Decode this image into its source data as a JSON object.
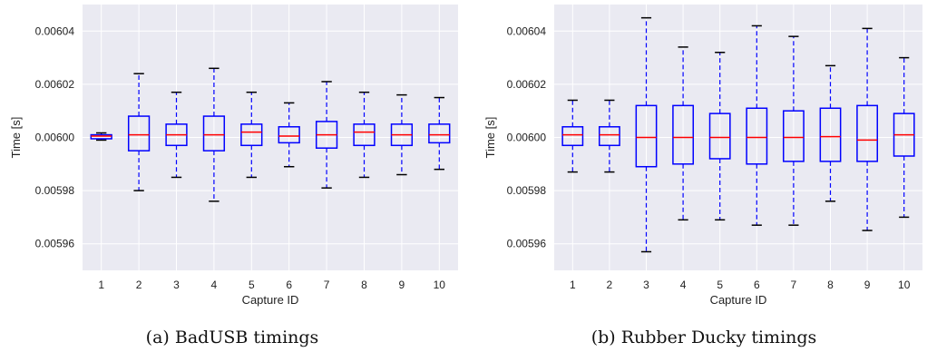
{
  "chart_data": [
    {
      "type": "box",
      "caption": "(a) BadUSB timings",
      "xlabel": "Capture ID",
      "ylabel": "Time [s]",
      "ylim": [
        0.00595,
        0.00605
      ],
      "yticks": [
        "0.00596",
        "0.00598",
        "0.00600",
        "0.00602",
        "0.00604"
      ],
      "grid": true,
      "categories": [
        "1",
        "2",
        "3",
        "4",
        "5",
        "6",
        "7",
        "8",
        "9",
        "10"
      ],
      "boxes": [
        {
          "whisker_low": 0.005999,
          "q1": 0.0059995,
          "median": 0.0060005,
          "q3": 0.006001,
          "whisker_high": 0.0060017
        },
        {
          "whisker_low": 0.00598,
          "q1": 0.005995,
          "median": 0.006001,
          "q3": 0.006008,
          "whisker_high": 0.006024
        },
        {
          "whisker_low": 0.005985,
          "q1": 0.005997,
          "median": 0.006001,
          "q3": 0.006005,
          "whisker_high": 0.006017
        },
        {
          "whisker_low": 0.005976,
          "q1": 0.005995,
          "median": 0.006001,
          "q3": 0.006008,
          "whisker_high": 0.006026
        },
        {
          "whisker_low": 0.005985,
          "q1": 0.005997,
          "median": 0.006002,
          "q3": 0.006005,
          "whisker_high": 0.006017
        },
        {
          "whisker_low": 0.005989,
          "q1": 0.005998,
          "median": 0.0060005,
          "q3": 0.006004,
          "whisker_high": 0.006013
        },
        {
          "whisker_low": 0.005981,
          "q1": 0.005996,
          "median": 0.006001,
          "q3": 0.006006,
          "whisker_high": 0.006021
        },
        {
          "whisker_low": 0.005985,
          "q1": 0.005997,
          "median": 0.006002,
          "q3": 0.006005,
          "whisker_high": 0.006017
        },
        {
          "whisker_low": 0.005986,
          "q1": 0.005997,
          "median": 0.006001,
          "q3": 0.006005,
          "whisker_high": 0.006016
        },
        {
          "whisker_low": 0.005988,
          "q1": 0.005998,
          "median": 0.006001,
          "q3": 0.006005,
          "whisker_high": 0.006015
        }
      ]
    },
    {
      "type": "box",
      "caption": "(b) Rubber Ducky timings",
      "xlabel": "Capture ID",
      "ylabel": "Time [s]",
      "ylim": [
        0.00595,
        0.00605
      ],
      "yticks": [
        "0.00596",
        "0.00598",
        "0.00600",
        "0.00602",
        "0.00604"
      ],
      "grid": true,
      "categories": [
        "1",
        "2",
        "3",
        "4",
        "5",
        "6",
        "7",
        "8",
        "9",
        "10"
      ],
      "boxes": [
        {
          "whisker_low": 0.005987,
          "q1": 0.005997,
          "median": 0.006001,
          "q3": 0.006004,
          "whisker_high": 0.006014
        },
        {
          "whisker_low": 0.005987,
          "q1": 0.005997,
          "median": 0.006001,
          "q3": 0.006004,
          "whisker_high": 0.006014
        },
        {
          "whisker_low": 0.005957,
          "q1": 0.005989,
          "median": 0.006,
          "q3": 0.006012,
          "whisker_high": 0.006045
        },
        {
          "whisker_low": 0.005969,
          "q1": 0.00599,
          "median": 0.006,
          "q3": 0.006012,
          "whisker_high": 0.006034
        },
        {
          "whisker_low": 0.005969,
          "q1": 0.005992,
          "median": 0.006,
          "q3": 0.006009,
          "whisker_high": 0.006032
        },
        {
          "whisker_low": 0.005967,
          "q1": 0.00599,
          "median": 0.006,
          "q3": 0.006011,
          "whisker_high": 0.006042
        },
        {
          "whisker_low": 0.005967,
          "q1": 0.005991,
          "median": 0.006,
          "q3": 0.00601,
          "whisker_high": 0.006038
        },
        {
          "whisker_low": 0.005976,
          "q1": 0.005991,
          "median": 0.0060003,
          "q3": 0.006011,
          "whisker_high": 0.006027
        },
        {
          "whisker_low": 0.005965,
          "q1": 0.005991,
          "median": 0.005999,
          "q3": 0.006012,
          "whisker_high": 0.006041
        },
        {
          "whisker_low": 0.00597,
          "q1": 0.005993,
          "median": 0.006001,
          "q3": 0.006009,
          "whisker_high": 0.00603
        }
      ]
    }
  ],
  "style": {
    "plot_background": "#eaeaf2",
    "grid_color": "#ffffff",
    "box_color": "#0000ff",
    "median_color": "#ff0000",
    "cap_color": "#000000"
  }
}
